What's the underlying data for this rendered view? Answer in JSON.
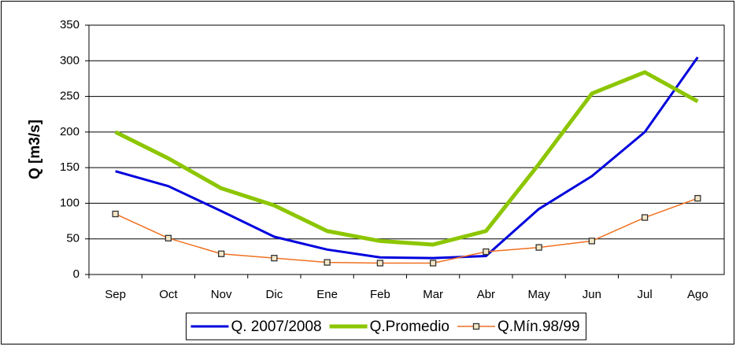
{
  "chart_data": {
    "type": "line",
    "y_label": "Q [m3/s]",
    "categories": [
      "Sep",
      "Oct",
      "Nov",
      "Dic",
      "Ene",
      "Feb",
      "Mar",
      "Abr",
      "May",
      "Jun",
      "Jul",
      "Ago"
    ],
    "series": [
      {
        "name": "Q. 2007/2008",
        "color": "#0000dd",
        "width": 3,
        "marker": false,
        "values": [
          145,
          124,
          89,
          53,
          35,
          24,
          23,
          26,
          92,
          138,
          200,
          305
        ]
      },
      {
        "name": "Q.Promedio",
        "color": "#8cc600",
        "width": 5,
        "marker": false,
        "values": [
          200,
          163,
          121,
          97,
          61,
          47,
          42,
          61,
          155,
          254,
          284,
          243
        ]
      },
      {
        "name": "Q.Mín.98/99",
        "color": "#f07020",
        "width": 1.5,
        "marker": true,
        "values": [
          85,
          51,
          29,
          23,
          17,
          16,
          16,
          32,
          38,
          47,
          80,
          107
        ]
      }
    ],
    "ylim": [
      0,
      350
    ],
    "yticks": [
      0,
      50,
      100,
      150,
      200,
      250,
      300,
      350
    ],
    "grid": true,
    "legend": "bottom"
  }
}
